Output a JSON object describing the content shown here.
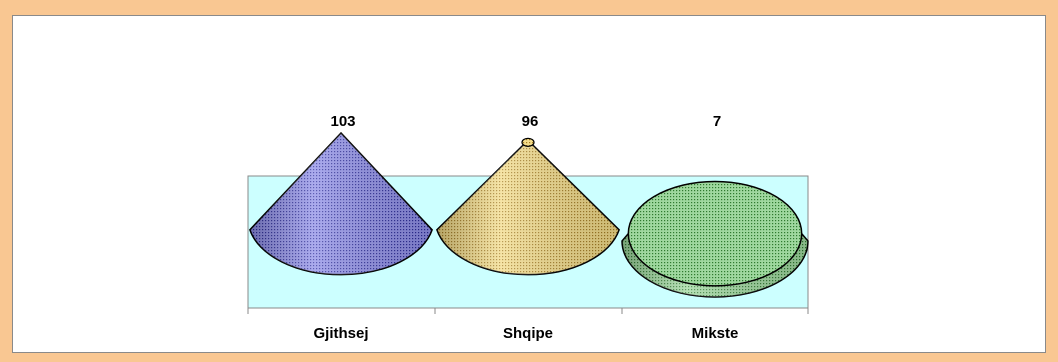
{
  "chart_data": {
    "type": "bar",
    "shape": "cone",
    "categories": [
      "Gjithsej",
      "Shqipe",
      "Mikste"
    ],
    "values": [
      103,
      96,
      7
    ],
    "data_labels": [
      "103",
      "96",
      "7"
    ],
    "title": "",
    "xlabel": "",
    "ylabel": "",
    "ylim": [
      0,
      103
    ],
    "grid": false,
    "legend": "none",
    "colors": {
      "Gjithsej": "#6f6fd6",
      "Shqipe": "#e7c55f",
      "Mikste": "#7fc07f",
      "floor": "#ccffff",
      "page_border": "#f9c792"
    }
  }
}
